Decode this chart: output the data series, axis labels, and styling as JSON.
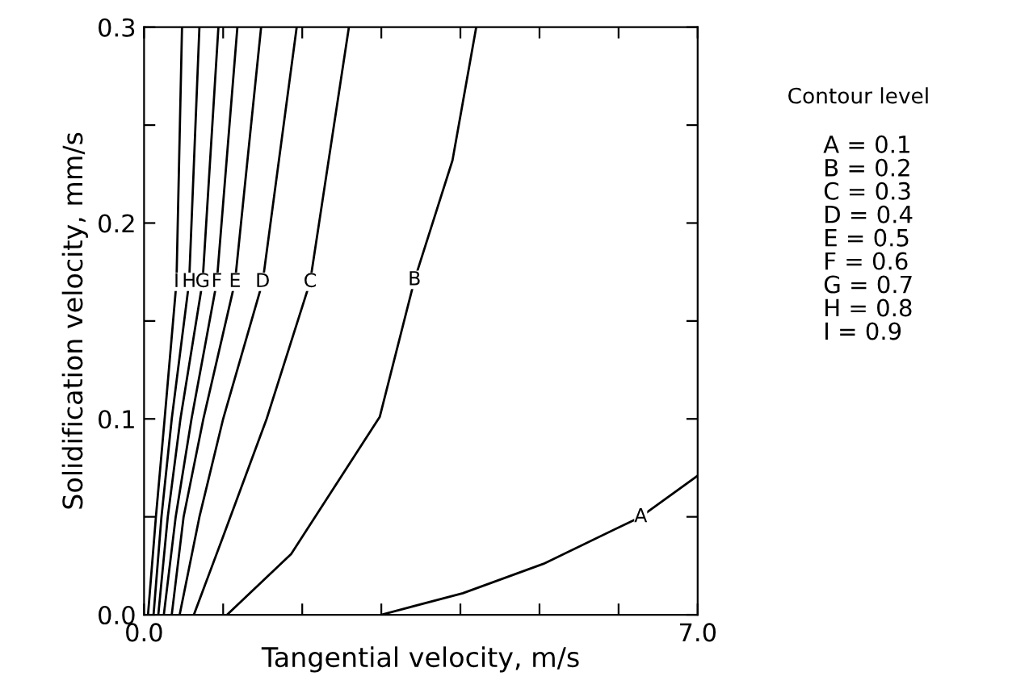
{
  "chart_data": {
    "type": "line",
    "xlabel": "Tangential velocity, m/s",
    "ylabel": "Solidification velocity, mm/s",
    "legend_title": "Contour level",
    "annotations": [
      "A = 0.1",
      "B = 0.2",
      "C = 0.3",
      "D = 0.4",
      "E = 0.5",
      "F = 0.6",
      "G = 0.7",
      "H = 0.8",
      "I = 0.9"
    ],
    "series": [
      {
        "name": "A",
        "color": "#000000",
        "x": [
          3.0,
          4.03,
          5.05,
          6.28,
          7.0
        ],
        "values": [
          0.0,
          0.011,
          0.026,
          0.05,
          0.071
        ]
      },
      {
        "name": "B",
        "color": "#000000",
        "x": [
          1.05,
          1.86,
          2.98,
          3.42,
          3.9,
          4.2
        ],
        "values": [
          0.0,
          0.031,
          0.101,
          0.171,
          0.232,
          0.3
        ]
      },
      {
        "name": "C",
        "color": "#000000",
        "x": [
          0.63,
          1.0,
          1.55,
          2.1,
          2.59
        ],
        "values": [
          0.0,
          0.04,
          0.1,
          0.17,
          0.3
        ]
      },
      {
        "name": "D",
        "color": "#000000",
        "x": [
          0.45,
          0.7,
          1.0,
          1.5,
          1.93
        ],
        "values": [
          0.0,
          0.05,
          0.1,
          0.17,
          0.3
        ]
      },
      {
        "name": "E",
        "color": "#000000",
        "x": [
          0.35,
          0.5,
          0.75,
          1.15,
          1.48
        ],
        "values": [
          0.0,
          0.05,
          0.1,
          0.17,
          0.3
        ]
      },
      {
        "name": "F",
        "color": "#000000",
        "x": [
          0.25,
          0.4,
          0.6,
          0.92,
          1.18
        ],
        "values": [
          0.0,
          0.05,
          0.1,
          0.17,
          0.3
        ]
      },
      {
        "name": "G",
        "color": "#000000",
        "x": [
          0.18,
          0.3,
          0.46,
          0.74,
          0.94
        ],
        "values": [
          0.0,
          0.05,
          0.1,
          0.17,
          0.3
        ]
      },
      {
        "name": "H",
        "color": "#000000",
        "x": [
          0.12,
          0.22,
          0.35,
          0.57,
          0.7
        ],
        "values": [
          0.0,
          0.05,
          0.1,
          0.17,
          0.3
        ]
      },
      {
        "name": "I",
        "color": "#000000",
        "x": [
          0.05,
          0.15,
          0.26,
          0.41,
          0.48
        ],
        "values": [
          0.0,
          0.05,
          0.1,
          0.17,
          0.3
        ]
      }
    ],
    "xlim": [
      0,
      7
    ],
    "ylim": [
      0,
      0.3
    ],
    "xticks": [
      {
        "value": 0,
        "label": "0.0"
      },
      {
        "value": 1,
        "label": null
      },
      {
        "value": 2,
        "label": null
      },
      {
        "value": 3,
        "label": null
      },
      {
        "value": 4,
        "label": null
      },
      {
        "value": 5,
        "label": null
      },
      {
        "value": 6,
        "label": null
      },
      {
        "value": 7,
        "label": "7.0"
      }
    ],
    "yticks": [
      {
        "value": 0,
        "label": "0.0"
      },
      {
        "value": 0.05,
        "label": null
      },
      {
        "value": 0.1,
        "label": "0.1"
      },
      {
        "value": 0.15,
        "label": null
      },
      {
        "value": 0.2,
        "label": "0.2"
      },
      {
        "value": 0.25,
        "label": null
      },
      {
        "value": 0.3,
        "label": "0.3"
      }
    ],
    "grid": false,
    "marker": "none",
    "line_style": "solid"
  }
}
